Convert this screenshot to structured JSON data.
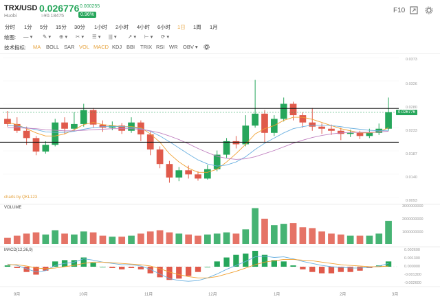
{
  "header": {
    "pair": "TRX/USD",
    "exchange": "Huobi",
    "price": "0.026776",
    "cny_price": "≈¥0.18475",
    "change_abs": "0.000255",
    "change_pct": "0.96%",
    "f10_label": "F10",
    "icons": [
      "expand-icon",
      "settings-icon"
    ]
  },
  "periods": [
    "分时",
    "1分",
    "5分",
    "15分",
    "30分",
    "1小时",
    "2小时",
    "4小时",
    "6小时",
    "1日",
    "1周",
    "1月"
  ],
  "active_period": "1日",
  "drawing": {
    "label": "绘图:",
    "tools": [
      "— ▾",
      "✎ ▾",
      "⊕ ▾",
      "✂ ▾",
      "☰ ▾",
      "||| ▾",
      "↗ ▾",
      "⊢ ▾",
      "⟳ ▾"
    ]
  },
  "indicators": {
    "label": "技术指标:",
    "items": [
      "MA",
      "BOLL",
      "SAR",
      "VOL",
      "MACD",
      "KDJ",
      "BBI",
      "TRIX",
      "RSI",
      "WR",
      "OBV ▾"
    ],
    "active": [
      "MA",
      "VOL",
      "MACD"
    ]
  },
  "main_panel": {
    "y_axis": [
      "0.0373",
      "0.0326",
      "0.0280",
      "0.0233",
      "0.0187",
      "0.0140",
      "0.0093"
    ],
    "current_price_tag": "0.026776",
    "watermark": "charts by QKL123"
  },
  "volume_panel": {
    "label": "VOLUME",
    "y_axis": [
      "3000000000",
      "2000000000",
      "1000000000"
    ]
  },
  "macd_panel": {
    "label": "MACD(12,26,9)",
    "y_axis": [
      "0.002600",
      "0.001300",
      "0.000000",
      "-0.001300",
      "-0.002600"
    ]
  },
  "x_axis": [
    "9月",
    "10月",
    "11月",
    "12月",
    "1月",
    "2月",
    "3月"
  ],
  "colors": {
    "up": "#26a65b",
    "down": "#e05a4b",
    "accent": "#e6a23c",
    "ma1": "#f0a030",
    "ma2": "#6ab0e0",
    "ma3": "#c080c0"
  },
  "chart_data": {
    "type": "candlestick",
    "x_start": "9月",
    "x_end": "3月",
    "ylim": [
      0.0093,
      0.0373
    ],
    "last_price": 0.026776,
    "support_line": 0.021,
    "resistance_line": 0.0275,
    "candles": [
      [
        0.0255,
        0.0245,
        0.027,
        0.024
      ],
      [
        0.0245,
        0.0232,
        0.0258,
        0.0228
      ],
      [
        0.0232,
        0.0218,
        0.024,
        0.0205
      ],
      [
        0.0218,
        0.0192,
        0.0222,
        0.0185
      ],
      [
        0.0192,
        0.0205,
        0.0212,
        0.0188
      ],
      [
        0.0205,
        0.0248,
        0.0255,
        0.0202
      ],
      [
        0.0248,
        0.0236,
        0.0258,
        0.0225
      ],
      [
        0.0236,
        0.0245,
        0.0268,
        0.0232
      ],
      [
        0.0245,
        0.0272,
        0.0284,
        0.024
      ],
      [
        0.0272,
        0.0244,
        0.0276,
        0.0238
      ],
      [
        0.0244,
        0.0238,
        0.0252,
        0.023
      ],
      [
        0.0238,
        0.0242,
        0.025,
        0.0233
      ],
      [
        0.0242,
        0.0232,
        0.0247,
        0.0226
      ],
      [
        0.0232,
        0.0248,
        0.0258,
        0.0228
      ],
      [
        0.0248,
        0.0225,
        0.0252,
        0.0212
      ],
      [
        0.0225,
        0.0196,
        0.023,
        0.0185
      ],
      [
        0.0196,
        0.0168,
        0.0202,
        0.016
      ],
      [
        0.0168,
        0.0142,
        0.0174,
        0.0132
      ],
      [
        0.0142,
        0.0156,
        0.0162,
        0.0135
      ],
      [
        0.0156,
        0.0148,
        0.0165,
        0.014
      ],
      [
        0.0148,
        0.014,
        0.0154,
        0.0136
      ],
      [
        0.014,
        0.0158,
        0.0166,
        0.0138
      ],
      [
        0.0158,
        0.0186,
        0.0194,
        0.0154
      ],
      [
        0.0186,
        0.0212,
        0.0218,
        0.018
      ],
      [
        0.0212,
        0.0206,
        0.0222,
        0.0198
      ],
      [
        0.0206,
        0.0242,
        0.0262,
        0.0202
      ],
      [
        0.0242,
        0.0265,
        0.033,
        0.0238
      ],
      [
        0.0265,
        0.0228,
        0.0272,
        0.021
      ],
      [
        0.0228,
        0.0255,
        0.0262,
        0.0222
      ],
      [
        0.0255,
        0.0284,
        0.0296,
        0.025
      ],
      [
        0.0284,
        0.0262,
        0.0288,
        0.0252
      ],
      [
        0.0262,
        0.0248,
        0.0268,
        0.0238
      ],
      [
        0.0248,
        0.024,
        0.0276,
        0.0232
      ],
      [
        0.024,
        0.0236,
        0.0246,
        0.0226
      ],
      [
        0.0236,
        0.0232,
        0.0244,
        0.0224
      ],
      [
        0.0232,
        0.0226,
        0.0238,
        0.0214
      ],
      [
        0.0226,
        0.0228,
        0.0234,
        0.022
      ],
      [
        0.0228,
        0.0222,
        0.0232,
        0.0216
      ],
      [
        0.0222,
        0.0228,
        0.0236,
        0.0218
      ],
      [
        0.0228,
        0.0236,
        0.0246,
        0.0224
      ],
      [
        0.0236,
        0.0268,
        0.0296,
        0.0232
      ]
    ],
    "ma_series": [
      {
        "values": [
          0.0248,
          0.0244,
          0.0236,
          0.0228,
          0.0222,
          0.0222,
          0.0226,
          0.0234,
          0.0244,
          0.0248,
          0.0244,
          0.0242,
          0.024,
          0.024,
          0.0238,
          0.0226,
          0.021,
          0.0188,
          0.0172,
          0.016,
          0.0152,
          0.0152,
          0.0158,
          0.0172,
          0.0188,
          0.0206,
          0.0226,
          0.0236,
          0.0242,
          0.0252,
          0.0258,
          0.0258,
          0.0254,
          0.0248,
          0.0242,
          0.0236,
          0.0232,
          0.0228,
          0.0228,
          0.023,
          0.0238
        ]
      },
      {
        "values": [
          0.0242,
          0.0241,
          0.0238,
          0.0234,
          0.023,
          0.0229,
          0.0229,
          0.0231,
          0.0235,
          0.0238,
          0.024,
          0.024,
          0.024,
          0.0239,
          0.0236,
          0.0231,
          0.0222,
          0.0211,
          0.0199,
          0.0187,
          0.0176,
          0.0168,
          0.0164,
          0.0166,
          0.0172,
          0.0182,
          0.0196,
          0.0208,
          0.0218,
          0.0228,
          0.0236,
          0.024,
          0.0243,
          0.0243,
          0.0242,
          0.024,
          0.0237,
          0.0235,
          0.0233,
          0.0232,
          0.0233
        ]
      },
      {
        "values": [
          0.0238,
          0.0238,
          0.0237,
          0.0236,
          0.0234,
          0.0233,
          0.0232,
          0.0232,
          0.0233,
          0.0234,
          0.0235,
          0.0236,
          0.0236,
          0.0236,
          0.0235,
          0.0232,
          0.0228,
          0.0222,
          0.0215,
          0.0207,
          0.0198,
          0.019,
          0.0183,
          0.0179,
          0.0177,
          0.0178,
          0.0182,
          0.0188,
          0.0194,
          0.0201,
          0.0208,
          0.0214,
          0.0219,
          0.0223,
          0.0226,
          0.0228,
          0.0229,
          0.0229,
          0.0229,
          0.023,
          0.0231
        ]
      }
    ],
    "volume": [
      0.6,
      0.8,
      1.0,
      1.1,
      0.9,
      1.3,
      1.0,
      0.9,
      1.2,
      1.1,
      0.8,
      0.7,
      0.7,
      0.8,
      1.0,
      1.2,
      1.3,
      1.1,
      1.0,
      0.9,
      0.8,
      0.9,
      1.0,
      1.1,
      1.0,
      1.4,
      3.4,
      2.4,
      1.8,
      1.9,
      2.0,
      1.6,
      1.5,
      1.2,
      1.0,
      0.9,
      0.8,
      0.8,
      0.8,
      1.0,
      2.2
    ],
    "macd": [
      0.0004,
      0.0002,
      -0.0003,
      -0.0008,
      -0.0006,
      0.0002,
      0.0005,
      0.0007,
      0.0012,
      0.001,
      0.0007,
      0.0005,
      0.0003,
      0.0003,
      0.0001,
      -0.0004,
      -0.0011,
      -0.0018,
      -0.0021,
      -0.0022,
      -0.0021,
      -0.0017,
      -0.0011,
      -0.0004,
      0.0002,
      0.0008,
      0.0015,
      0.0016,
      0.0014,
      0.0015,
      0.0012,
      0.0008,
      0.0005,
      0.0002,
      0.0,
      -0.0001,
      -0.0002,
      -0.0002,
      -0.0001,
      0.0001,
      0.0005
    ],
    "signal": [
      0.0003,
      0.0003,
      0.0001,
      -0.0002,
      -0.0003,
      -0.0002,
      0.0,
      0.0002,
      0.0005,
      0.0007,
      0.0007,
      0.0006,
      0.0005,
      0.0004,
      0.0003,
      0.0001,
      -0.0003,
      -0.0008,
      -0.0012,
      -0.0015,
      -0.0017,
      -0.0017,
      -0.0015,
      -0.0011,
      -0.0007,
      -0.0002,
      0.0003,
      0.0007,
      0.0009,
      0.0011,
      0.0011,
      0.001,
      0.0009,
      0.0007,
      0.0005,
      0.0003,
      0.0002,
      0.0001,
      0.0,
      0.0,
      0.0001
    ]
  }
}
